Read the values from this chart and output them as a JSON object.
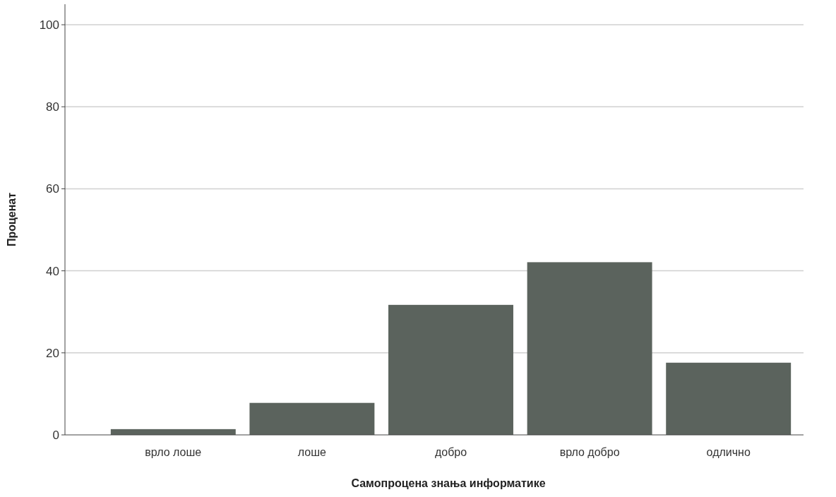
{
  "chart_data": {
    "type": "bar",
    "xlabel": "Самопроцена знања информатике",
    "ylabel": "Проценат",
    "categories": [
      "врло лоше",
      "лоше",
      "добро",
      "врло добро",
      "одлично"
    ],
    "values": [
      1.4,
      7.8,
      31.7,
      42.1,
      17.6
    ],
    "color": "#5b635d",
    "ylim": [
      0,
      105
    ],
    "yticks": [
      0,
      20,
      40,
      60,
      80,
      100
    ],
    "grid": "y"
  }
}
